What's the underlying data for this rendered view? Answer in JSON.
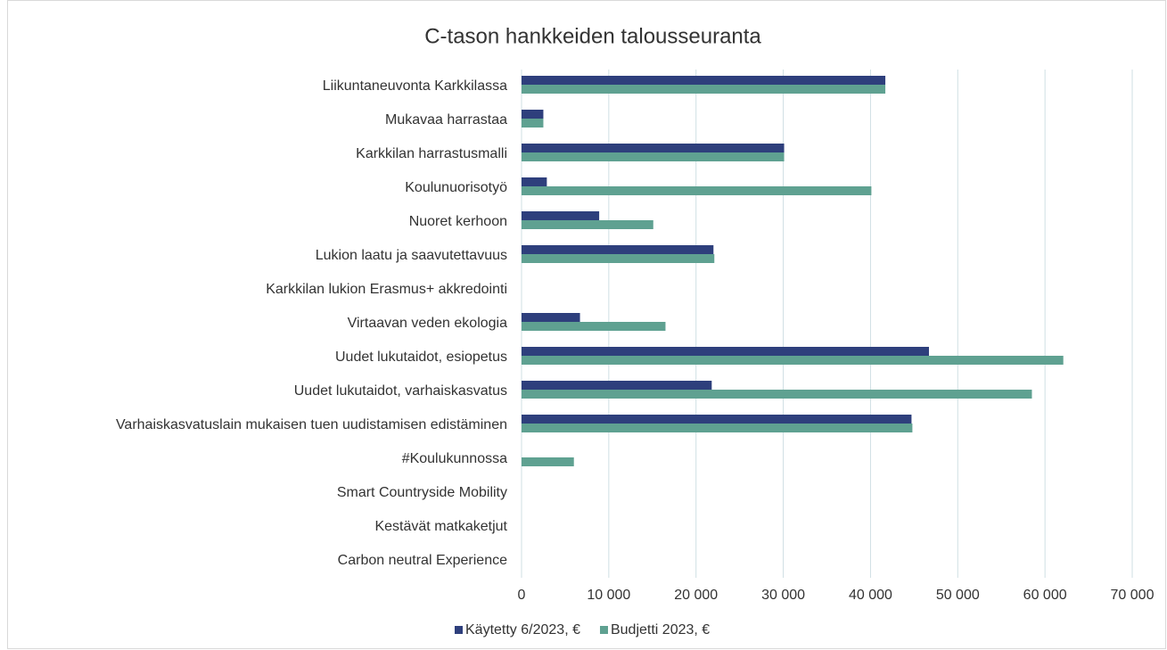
{
  "chart_data": {
    "type": "hbar",
    "title": "C-tason hankkeiden talousseuranta",
    "categories": [
      "Liikuntaneuvonta Karkkilassa",
      "Mukavaa harrastaa",
      "Karkkilan harrastusmalli",
      "Koulunuorisotyö",
      "Nuoret kerhoon",
      "Lukion laatu ja saavutettavuus",
      "Karkkilan lukion Erasmus+ akkredointi",
      "Virtaavan veden ekologia",
      "Uudet lukutaidot, esiopetus",
      "Uudet lukutaidot, varhaiskasvatus",
      "Varhaiskasvatuslain mukaisen tuen uudistamisen edistäminen",
      "#Koulukunnossa",
      "Smart Countryside Mobility",
      "Kestävät matkaketjut",
      "Carbon neutral Experience"
    ],
    "series": [
      {
        "name": "Käytetty 6/2023, €",
        "color": "#2e3f7c",
        "values": [
          41700,
          2500,
          30100,
          2900,
          8900,
          22000,
          0,
          6700,
          46700,
          21800,
          44700,
          0,
          0,
          0,
          0
        ]
      },
      {
        "name": "Budjetti 2023, €",
        "color": "#5fa191",
        "values": [
          41700,
          2500,
          30100,
          40100,
          15100,
          22100,
          0,
          16500,
          62100,
          58500,
          44800,
          6000,
          0,
          0,
          0
        ]
      }
    ],
    "xlim": [
      0,
      70000
    ],
    "xticks": [
      0,
      {
        "value": 10000,
        "label": "10 000"
      },
      {
        "value": 20000,
        "label": "20 000"
      },
      {
        "value": 30000,
        "label": "30 000"
      },
      {
        "value": 40000,
        "label": "40 000"
      },
      {
        "value": 50000,
        "label": "50 000"
      },
      {
        "value": 60000,
        "label": "60 000"
      },
      {
        "value": 70000,
        "label": "70 000"
      }
    ],
    "grid": true,
    "legend": "bottom"
  }
}
